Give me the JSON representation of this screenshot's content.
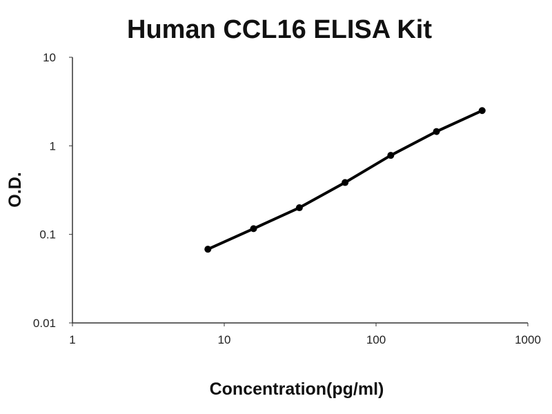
{
  "chart_data": {
    "type": "line",
    "title": "Human CCL16 ELISA Kit",
    "xlabel": "Concentration(pg/ml)",
    "ylabel": "O.D.",
    "xscale": "log",
    "yscale": "log",
    "xlim": [
      1,
      1000
    ],
    "ylim": [
      0.01,
      10
    ],
    "xticks": [
      "1",
      "10",
      "100",
      "1000"
    ],
    "yticks": [
      "0.01",
      "0.1",
      "1",
      "10"
    ],
    "grid": false,
    "legend": "none",
    "color": "#000000",
    "series": [
      {
        "x": [
          7.8,
          15.6,
          31.25,
          62.5,
          125,
          250,
          500
        ],
        "y": [
          0.068,
          0.116,
          0.2,
          0.385,
          0.78,
          1.45,
          2.5
        ]
      }
    ]
  }
}
